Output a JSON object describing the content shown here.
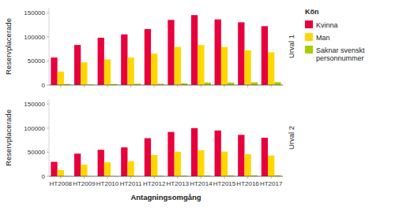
{
  "chart_data": [
    {
      "type": "bar",
      "title": "Urval 1",
      "ylabel": "Reservplacerade",
      "legend_title": "Kön",
      "legend": "right",
      "tick_labels": "y",
      "categories": [
        "HT2008",
        "HT2009",
        "HT2010",
        "HT2011",
        "HT2012",
        "HT2013",
        "HT2014",
        "HT2015",
        "HT2016",
        "HT2017"
      ],
      "series": [
        {
          "name": "Kvinna",
          "color": "#E8003D",
          "values": [
            57000,
            83000,
            98000,
            105000,
            116000,
            135000,
            145000,
            136000,
            130000,
            122000
          ]
        },
        {
          "name": "Man",
          "color": "#FFD700",
          "values": [
            28000,
            47000,
            53000,
            57000,
            65000,
            79000,
            83000,
            79000,
            72000,
            68000
          ]
        },
        {
          "name": "Saknar svenskt\npersonnummer",
          "color": "#AACC00",
          "values": [
            2000,
            1000,
            2000,
            2500,
            2500,
            3500,
            5000,
            5000,
            5500,
            6000
          ]
        }
      ],
      "ylim": [
        0,
        160000
      ],
      "yticks": [
        0,
        50000,
        100000,
        150000
      ]
    },
    {
      "type": "bar",
      "title": "Urval 2",
      "ylabel": "Reservplacerade",
      "xlabel": "Antagningsomgång",
      "categories": [
        "HT2008",
        "HT2009",
        "HT2010",
        "HT2011",
        "HT2012",
        "HT2013",
        "HT2014",
        "HT2015",
        "HT2016",
        "HT2017"
      ],
      "series": [
        {
          "name": "Kvinna",
          "color": "#E8003D",
          "values": [
            30000,
            47000,
            55000,
            60000,
            79000,
            92000,
            100000,
            95000,
            86000,
            80000
          ]
        },
        {
          "name": "Man",
          "color": "#FFD700",
          "values": [
            13000,
            24000,
            29000,
            31000,
            44000,
            51000,
            54000,
            51000,
            46000,
            43000
          ]
        },
        {
          "name": "Saknar svenskt\npersonnummer",
          "color": "#AACC00",
          "values": [
            500,
            500,
            500,
            500,
            1000,
            1500,
            1500,
            2000,
            2000,
            2000
          ]
        }
      ],
      "ylim": [
        0,
        160000
      ],
      "yticks": [
        0,
        50000,
        100000,
        150000
      ]
    }
  ]
}
